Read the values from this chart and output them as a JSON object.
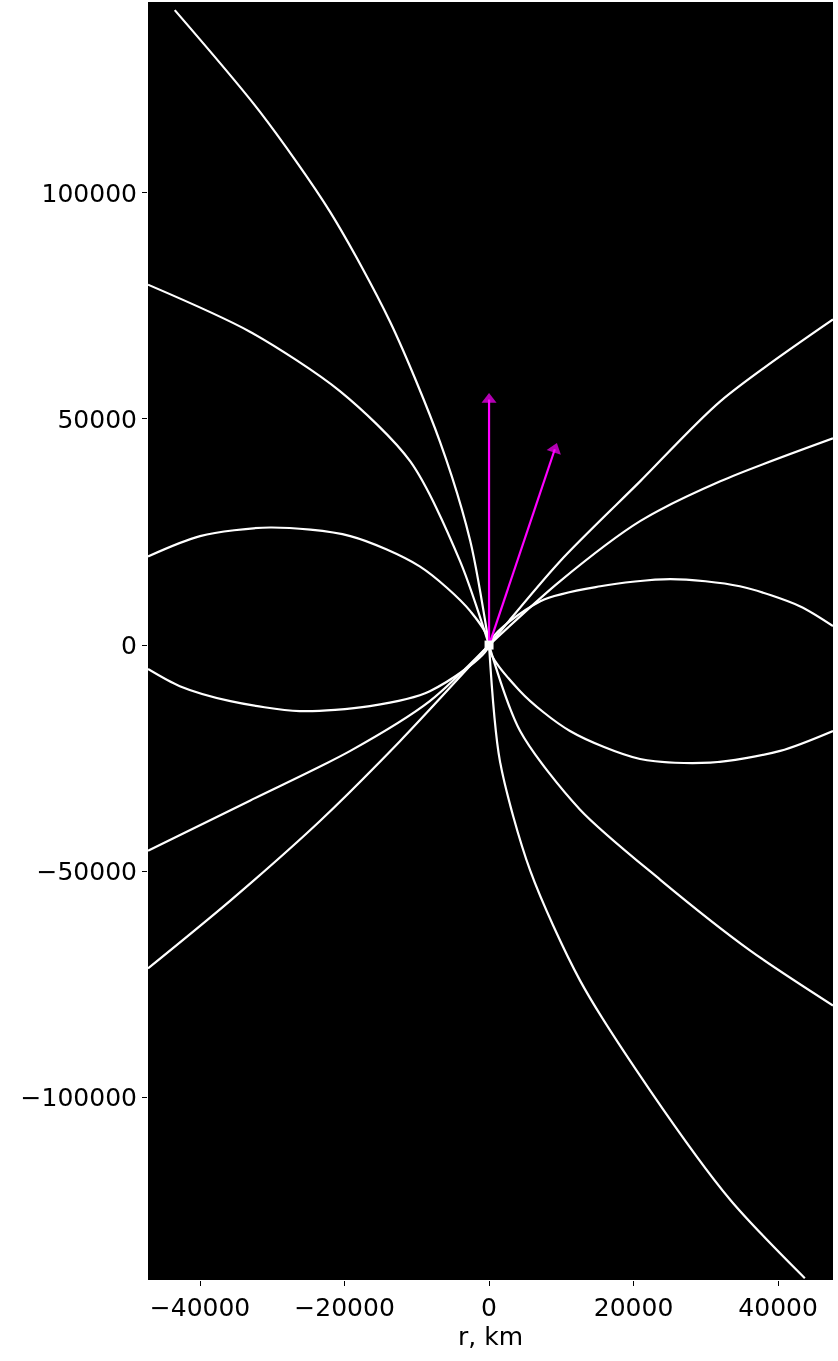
{
  "chart_data": {
    "type": "line",
    "xlabel": "r, km",
    "xlim": [
      -47200,
      47600
    ],
    "ylim": [
      -140400,
      142200
    ],
    "xticks": [
      -40000,
      -20000,
      0,
      20000,
      40000
    ],
    "yticks": [
      -100000,
      -50000,
      0,
      50000,
      100000
    ],
    "grid": false,
    "line_style": "solid",
    "marker": "none",
    "series": [
      {
        "color": "#ffffff",
        "x": [
          -43500,
          -31700,
          -22000,
          -13700,
          -6800,
          -2600,
          0
        ],
        "values": [
          140400,
          117900,
          95800,
          71500,
          45000,
          23000,
          0
        ]
      },
      {
        "color": "#ffffff",
        "x": [
          0,
          1500,
          5700,
          12600,
          22300,
          33400,
          43700
        ],
        "values": [
          0,
          -25600,
          -49900,
          -74200,
          -98500,
          -122700,
          -140000
        ]
      },
      {
        "color": "#ffffff",
        "x": [
          -47200,
          -33100,
          -20600,
          -10900,
          -4000,
          0
        ],
        "values": [
          79700,
          69300,
          56100,
          40600,
          18500,
          0
        ]
      },
      {
        "color": "#ffffff",
        "x": [
          -47200,
          -40000,
          -30300,
          -19200,
          -9600,
          -2600,
          0,
          -8200,
          -16500,
          -26200,
          -35800,
          -42800,
          -47200
        ],
        "values": [
          19600,
          24100,
          26000,
          24100,
          17400,
          7500,
          0,
          -10200,
          -13500,
          -14600,
          -12400,
          -9100,
          -5300
        ]
      },
      {
        "color": "#ffffff",
        "x": [
          -47200,
          -33100,
          -19200,
          -8200,
          0
        ],
        "values": [
          -45500,
          -34400,
          -23400,
          -12400,
          0
        ]
      },
      {
        "color": "#ffffff",
        "x": [
          -47200,
          -35800,
          -23400,
          -12300,
          0
        ],
        "values": [
          -71500,
          -56500,
          -38900,
          -21200,
          0
        ]
      },
      {
        "color": "#ffffff",
        "x": [
          0,
          9800,
          20900,
          32000,
          47600
        ],
        "values": [
          0,
          18500,
          36200,
          53900,
          72000
        ]
      },
      {
        "color": "#ffffff",
        "x": [
          0,
          9800,
          20900,
          32000,
          47600
        ],
        "values": [
          0,
          14100,
          27400,
          36200,
          45700
        ]
      },
      {
        "color": "#ffffff",
        "x": [
          47600,
          40300,
          30600,
          20900,
          11200,
          4300,
          0,
          7100,
          15400,
          25100,
          34700,
          43000,
          47600
        ],
        "values": [
          -19000,
          -23400,
          -26000,
          -25200,
          -19000,
          -10200,
          0,
          9700,
          13000,
          14600,
          13000,
          8600,
          4200
        ]
      },
      {
        "color": "#ffffff",
        "x": [
          0,
          4300,
          12600,
          23700,
          36100,
          47600
        ],
        "values": [
          0,
          -19000,
          -36400,
          -51900,
          -67500,
          -79700
        ]
      },
      {
        "color": "#ff00ff",
        "marker": "triangle",
        "x": [
          0,
          0
        ],
        "values": [
          0,
          54300
        ]
      },
      {
        "color": "#ff00ff",
        "marker": "triangle",
        "x": [
          0,
          9100
        ],
        "values": [
          0,
          43300
        ]
      },
      {
        "type": "scatter",
        "color": "#ffffff",
        "marker": "square",
        "x": [
          0
        ],
        "values": [
          0
        ]
      }
    ]
  }
}
